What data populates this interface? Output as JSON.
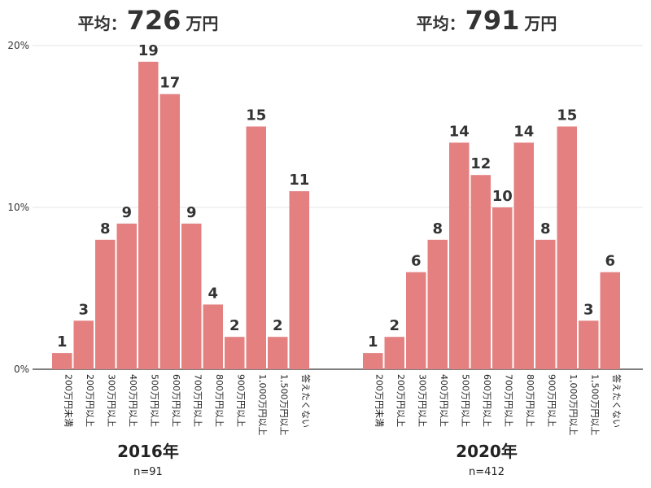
{
  "chart_data": [
    {
      "type": "bar",
      "title_prefix": "平均：",
      "title_value": "726",
      "title_unit": "万円",
      "xlabel": "2016年",
      "n_label": "n=91",
      "y_ticks": [
        "0%",
        "10%",
        "20%"
      ],
      "ylim": [
        0,
        20
      ],
      "categories": [
        "200万円未満",
        "200万円以上",
        "300万円以上",
        "400万円以上",
        "500万円以上",
        "600万円以上",
        "700万円以上",
        "800万円以上",
        "900万円以上",
        "1,000万円以上",
        "1,500万円以上",
        "答えたくない"
      ],
      "values": [
        1,
        3,
        8,
        9,
        19,
        17,
        9,
        4,
        2,
        15,
        2,
        11
      ],
      "grid": true,
      "color": "#e48080"
    },
    {
      "type": "bar",
      "title_prefix": "平均：",
      "title_value": "791",
      "title_unit": "万円",
      "xlabel": "2020年",
      "n_label": "n=412",
      "ylim": [
        0,
        20
      ],
      "categories": [
        "200万円未満",
        "200万円以上",
        "300万円以上",
        "400万円以上",
        "500万円以上",
        "600万円以上",
        "700万円以上",
        "800万円以上",
        "900万円以上",
        "1,000万円以上",
        "1,500万円以上",
        "答えたくない"
      ],
      "values": [
        1,
        2,
        6,
        8,
        14,
        12,
        10,
        14,
        8,
        15,
        3,
        6
      ],
      "grid": true,
      "color": "#e48080"
    }
  ]
}
